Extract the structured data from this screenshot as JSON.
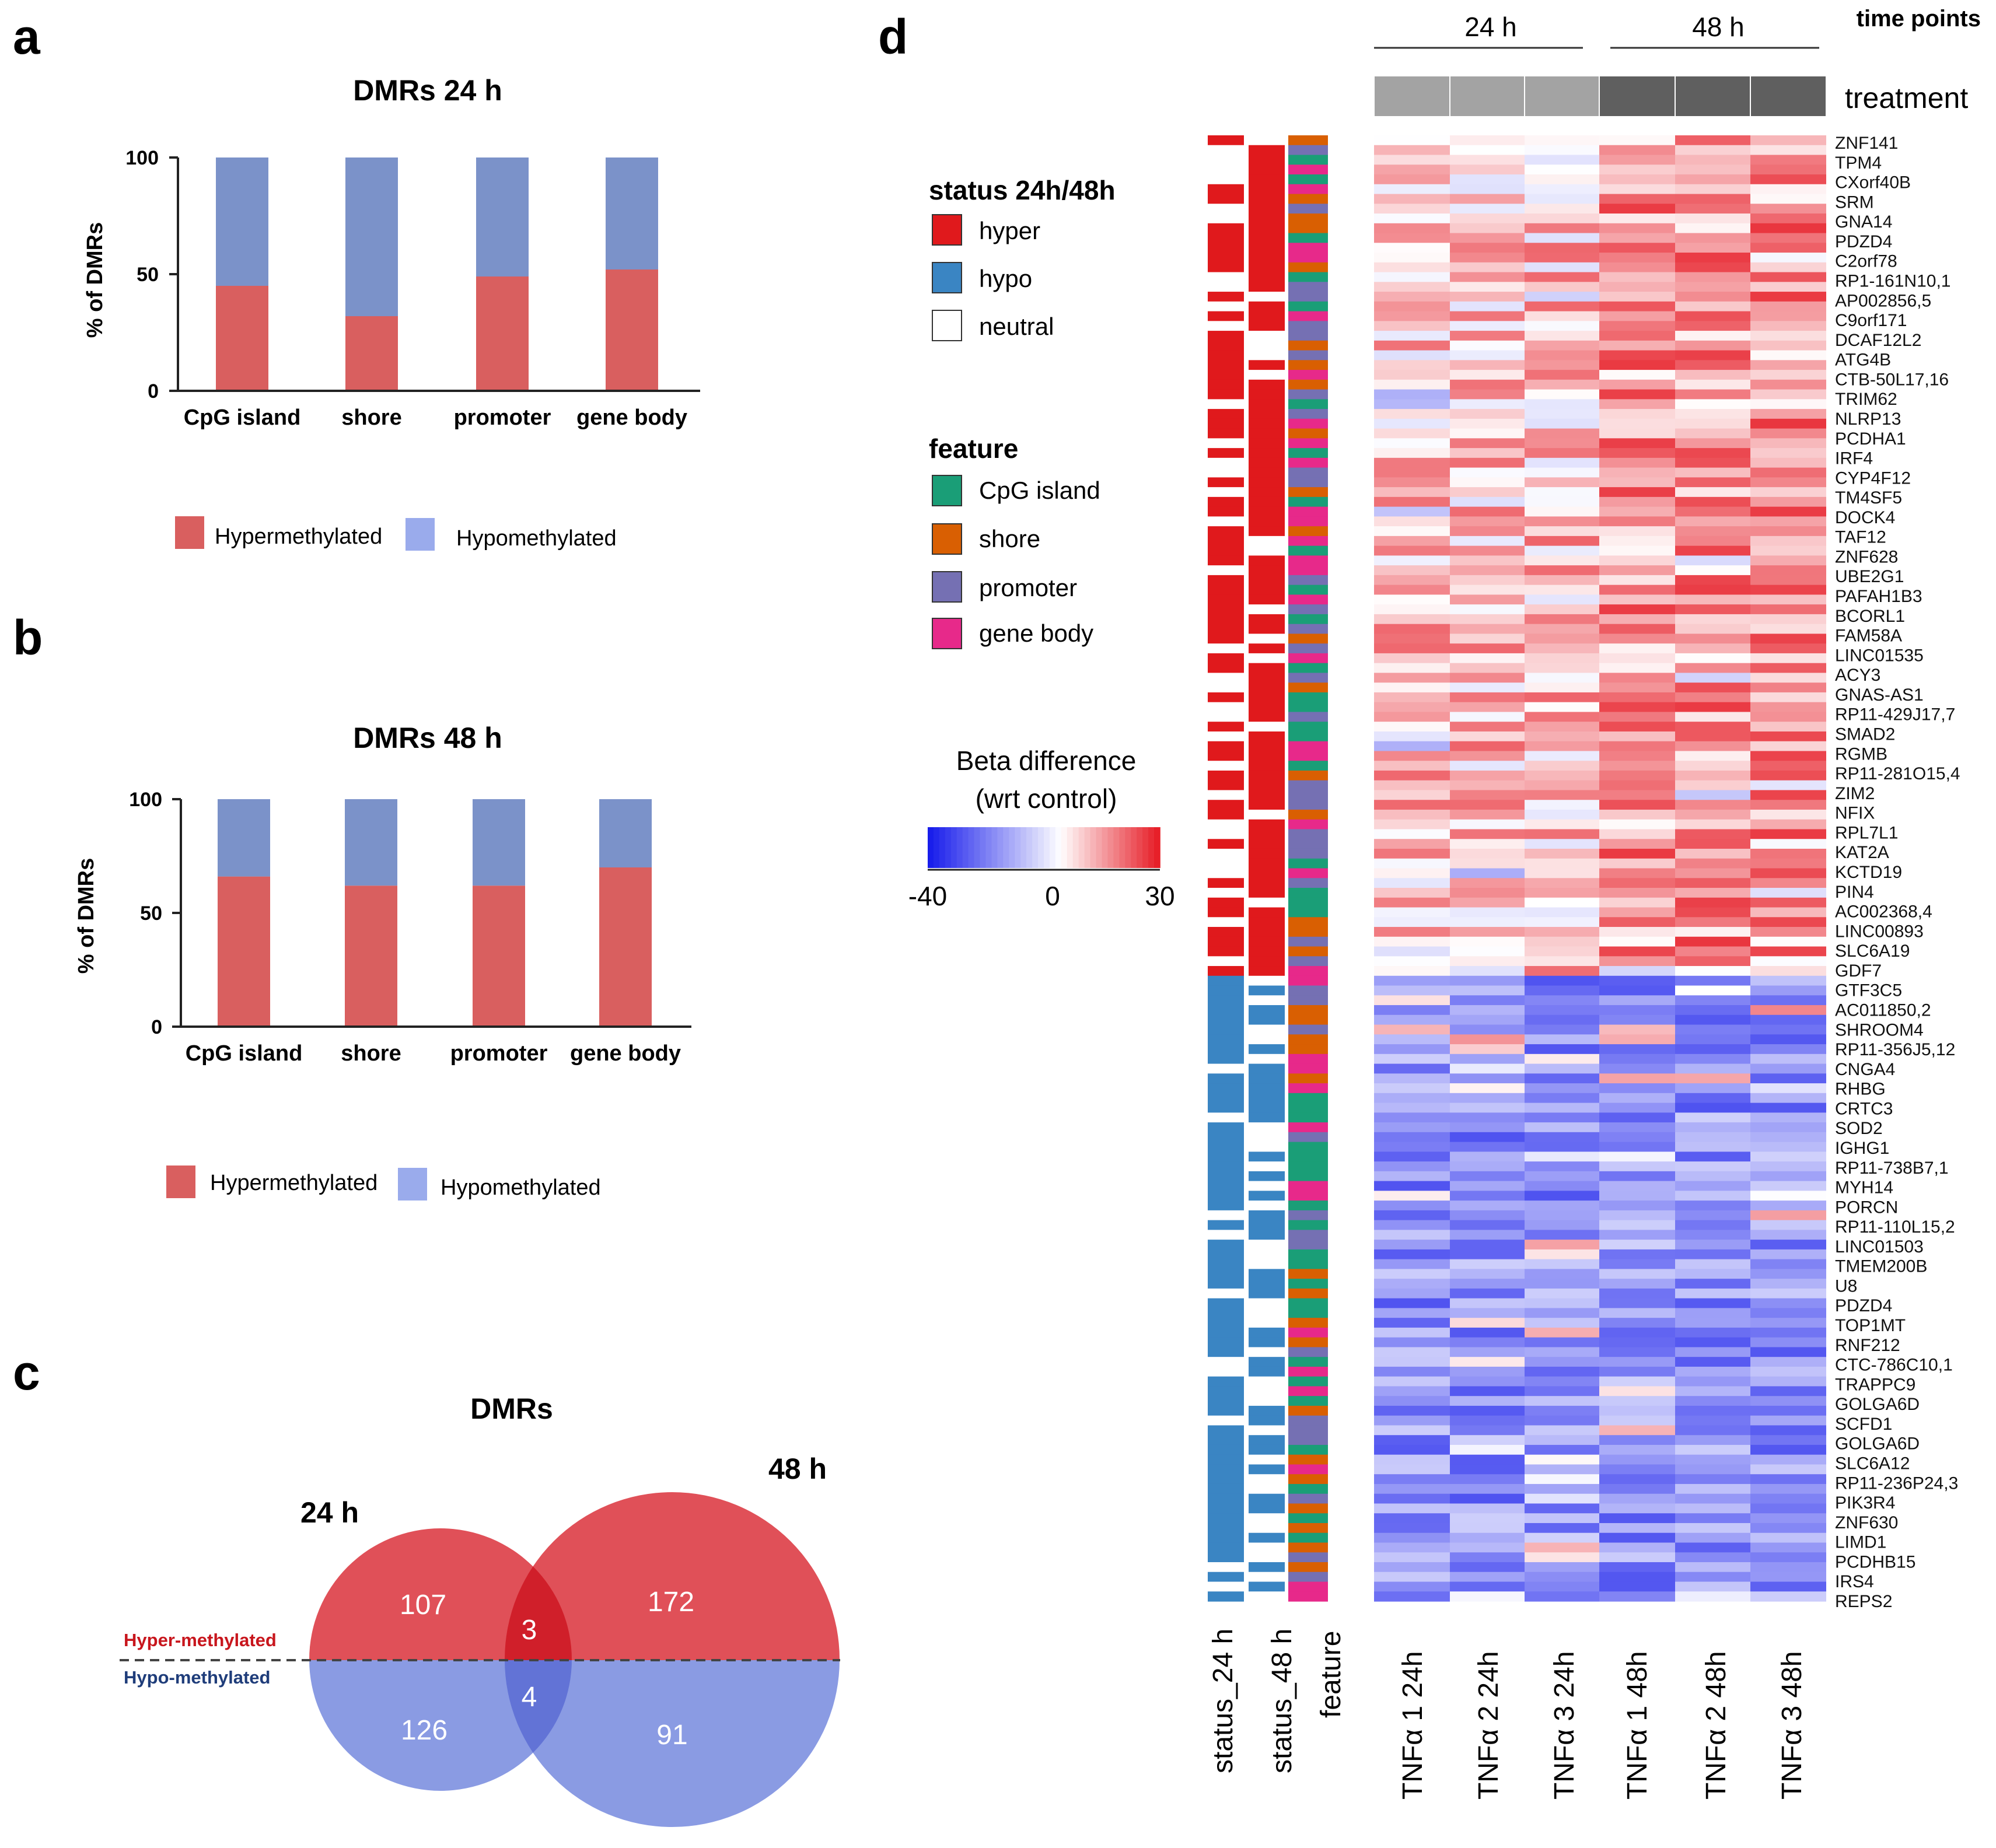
{
  "panels": {
    "a": "a",
    "b": "b",
    "c": "c",
    "d": "d"
  },
  "chart_data": [
    {
      "type": "bar",
      "stacked": true,
      "title": "DMRs 24 h",
      "ylabel": "% of DMRs",
      "ylim": [
        0,
        100
      ],
      "yticks": [
        "0",
        "50",
        "100"
      ],
      "categories": [
        "CpG island",
        "shore",
        "promoter",
        "gene body"
      ],
      "series": [
        {
          "name": "Hypermethylated",
          "color": "#d95f5f",
          "values": [
            45,
            32,
            49,
            52
          ]
        },
        {
          "name": "Hypomethylated",
          "color": "#7b92c9",
          "values": [
            55,
            68,
            51,
            48
          ]
        }
      ]
    },
    {
      "type": "bar",
      "stacked": true,
      "title": "DMRs 48 h",
      "ylabel": "% of DMRs",
      "ylim": [
        0,
        100
      ],
      "yticks": [
        "0",
        "50",
        "100"
      ],
      "categories": [
        "CpG island",
        "shore",
        "promoter",
        "gene body"
      ],
      "series": [
        {
          "name": "Hypermethylated",
          "color": "#d95f5f",
          "values": [
            66,
            62,
            62,
            70
          ]
        },
        {
          "name": "Hypomethylated",
          "color": "#7b92c9",
          "values": [
            34,
            38,
            38,
            30
          ]
        }
      ]
    },
    {
      "type": "venn",
      "title": "DMRs",
      "sets": [
        "24 h",
        "48 h"
      ],
      "rows": [
        "Hyper-methylated",
        "Hypo-methylated"
      ],
      "hyper": {
        "only_24h": "107",
        "both": "3",
        "only_48h": "172"
      },
      "hypo": {
        "only_24h": "126",
        "both": "4",
        "only_48h": "91"
      },
      "colors": {
        "hyper": "#e05058",
        "hyper_overlap": "#d01f2a",
        "hypo": "#8a9be3",
        "hypo_overlap": "#6273d6"
      }
    },
    {
      "type": "heatmap",
      "time_points_label": "time points",
      "time_points": [
        "24 h",
        "48 h"
      ],
      "treatment_label": "treatment",
      "columns": [
        "TNFα 1 24h",
        "TNFα 2 24h",
        "TNFα 3 24h",
        "TNFα 1 48h",
        "TNFα 2 48h",
        "TNFα 3 48h"
      ],
      "annotation_columns": [
        "status_24 h",
        "status_48 h",
        "feature"
      ],
      "legend_status_title": "status 24h/48h",
      "legend_status": [
        {
          "label": "hyper",
          "color": "#e0191c"
        },
        {
          "label": "hypo",
          "color": "#3a85c3"
        },
        {
          "label": "neutral",
          "color": "#ffffff"
        }
      ],
      "legend_feature_title": "feature",
      "legend_feature": [
        {
          "label": "CpG island",
          "color": "#1a9e77"
        },
        {
          "label": "shore",
          "color": "#d95f02"
        },
        {
          "label": "promoter",
          "color": "#7570b3"
        },
        {
          "label": "gene body",
          "color": "#e7298a"
        }
      ],
      "colorbar_title_1": "Beta difference",
      "colorbar_title_2": "(wrt control)",
      "colorbar_min": "-40",
      "colorbar_mid": "0",
      "colorbar_max": "30",
      "value_range": [
        -40,
        30
      ],
      "row_count": 150,
      "hyper_row_count": 86,
      "gene_labels": [
        "ZNF141",
        "TPM4",
        "CXorf40B",
        "SRM",
        "GNA14",
        "PDZD4",
        "C2orf78",
        "RP1-161N10,1",
        "AP002856,5",
        "C9orf171",
        "DCAF12L2",
        "ATG4B",
        "CTB-50L17,16",
        "TRIM62",
        "NLRP13",
        "PCDHA1",
        "IRF4",
        "CYP4F12",
        "TM4SF5",
        "DOCK4",
        "TAF12",
        "ZNF628",
        "UBE2G1",
        "PAFAH1B3",
        "BCORL1",
        "FAM58A",
        "LINC01535",
        "ACY3",
        "GNAS-AS1",
        "RP11-429J17,7",
        "SMAD2",
        "RGMB",
        "RP11-281O15,4",
        "ZIM2",
        "NFIX",
        "RPL7L1",
        "KAT2A",
        "KCTD19",
        "PIN4",
        "AC002368,4",
        "LINC00893",
        "SLC6A19",
        "GDF7",
        "GTF3C5",
        "AC011850,2",
        "SHROOM4",
        "RP11-356J5,12",
        "CNGA4",
        "RHBG",
        "CRTC3",
        "SOD2",
        "IGHG1",
        "RP11-738B7,1",
        "MYH14",
        "PORCN",
        "RP11-110L15,2",
        "LINC01503",
        "TMEM200B",
        "U8",
        "PDZD4",
        "TOP1MT",
        "RNF212",
        "CTC-786C10,1",
        "TRAPPC9",
        "GOLGA6D",
        "SCFD1",
        "GOLGA6D",
        "SLC6A12",
        "RP11-236P24,3",
        "PIK3R4",
        "ZNF630",
        "LIMD1",
        "PCDHB15",
        "IRS4",
        "REPS2"
      ]
    }
  ]
}
